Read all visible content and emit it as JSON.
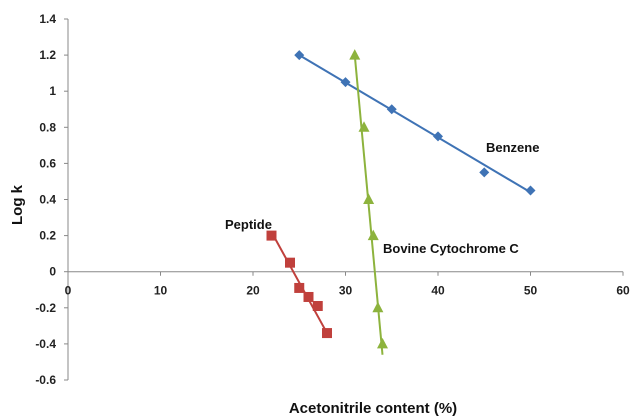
{
  "chart_data": {
    "type": "scatter",
    "title": "",
    "xlabel": "Acetonitrile content (%)",
    "ylabel": "Log k",
    "xlim": [
      0,
      60
    ],
    "ylim": [
      -0.6,
      1.4
    ],
    "x_ticks": [
      "0",
      "10",
      "20",
      "30",
      "40",
      "50",
      "60"
    ],
    "y_ticks": [
      "-0.6",
      "-0.4",
      "-0.2",
      "0",
      "0.2",
      "0.4",
      "0.6",
      "0.8",
      "1",
      "1.2",
      "1.4"
    ],
    "grid": false,
    "legend": "none",
    "series": [
      {
        "label": "Benzene",
        "marker": "diamond",
        "color": "#3f73b5",
        "points": [
          [
            25,
            1.2
          ],
          [
            30,
            1.05
          ],
          [
            35,
            0.9
          ],
          [
            40,
            0.75
          ],
          [
            45,
            0.55
          ],
          [
            50,
            0.45
          ]
        ],
        "trendline": [
          [
            25,
            1.2
          ],
          [
            50,
            0.44
          ]
        ]
      },
      {
        "label": "Peptide",
        "marker": "square",
        "color": "#c0403c",
        "points": [
          [
            22,
            0.2
          ],
          [
            24,
            0.05
          ],
          [
            25,
            -0.09
          ],
          [
            26,
            -0.14
          ],
          [
            27,
            -0.19
          ],
          [
            28,
            -0.34
          ]
        ],
        "trendline": [
          [
            22,
            0.22
          ],
          [
            28,
            -0.34
          ]
        ]
      },
      {
        "label": "Bovine Cytochrome C",
        "marker": "triangle",
        "color": "#8db33d",
        "points": [
          [
            31,
            1.2
          ],
          [
            32,
            0.8
          ],
          [
            32.5,
            0.4
          ],
          [
            33,
            0.2
          ],
          [
            33.5,
            -0.2
          ],
          [
            34,
            -0.4
          ]
        ],
        "trendline": [
          [
            31,
            1.2
          ],
          [
            34,
            -0.46
          ]
        ]
      }
    ]
  }
}
